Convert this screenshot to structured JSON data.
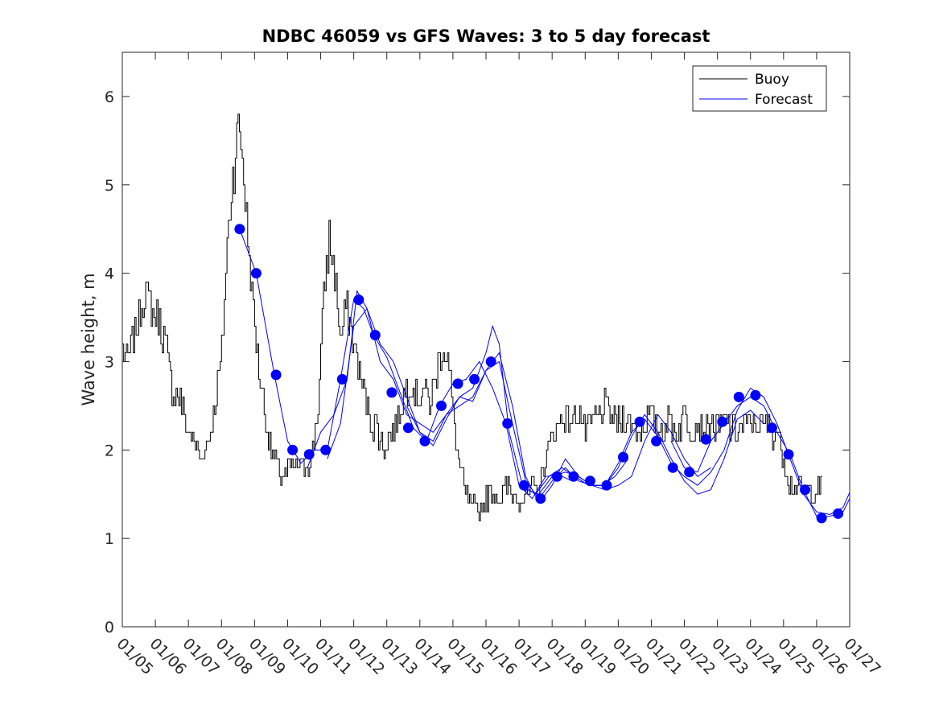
{
  "chart_data": {
    "type": "line",
    "title": "NDBC 46059 vs GFS Waves: 3 to 5 day forecast",
    "xlabel": "",
    "ylabel": "Wave height, m",
    "xlim": [
      0,
      22
    ],
    "ylim": [
      0,
      6.5
    ],
    "yticks": [
      0,
      1,
      2,
      3,
      4,
      5,
      6
    ],
    "xtick_labels": [
      "01/05",
      "01/06",
      "01/07",
      "01/08",
      "01/09",
      "01/10",
      "01/11",
      "01/12",
      "01/13",
      "01/14",
      "01/15",
      "01/16",
      "01/17",
      "01/18",
      "01/19",
      "01/20",
      "01/21",
      "01/22",
      "01/23",
      "01/24",
      "01/25",
      "01/26",
      "01/27"
    ],
    "grid": false,
    "legend": {
      "location": "top-right",
      "entries": [
        "Buoy",
        "Forecast"
      ]
    },
    "colors": {
      "buoy": "#000000",
      "forecast": "#0000ff"
    },
    "buoy_anchors": {
      "x": [
        0,
        0.1,
        0.3,
        0.55,
        0.7,
        0.95,
        1.1,
        1.3,
        1.5,
        1.75,
        1.9,
        2.15,
        2.35,
        2.6,
        2.8,
        3.0,
        3.15,
        3.3,
        3.45,
        3.55,
        3.65,
        3.75,
        3.85,
        3.95,
        4.1,
        4.3,
        4.5,
        4.7,
        4.9,
        5.1,
        5.4,
        5.7,
        5.9,
        6.1,
        6.25,
        6.45,
        6.6,
        6.75,
        6.95,
        7.1,
        7.25,
        7.4,
        7.55,
        7.7,
        7.9,
        8.1,
        8.3,
        8.5,
        8.7,
        8.9,
        9.1,
        9.3,
        9.5,
        9.7,
        9.85,
        10.0,
        10.15,
        10.35,
        10.55,
        10.75,
        10.95,
        11.1,
        11.25,
        11.45,
        11.6,
        11.8,
        12.0,
        12.2,
        12.4,
        12.6,
        12.8,
        13.0,
        13.2,
        13.4,
        13.6,
        13.8,
        14.0,
        14.2,
        14.4,
        14.6,
        14.8,
        15.0,
        15.2,
        15.4,
        15.6,
        15.8,
        16.0,
        16.2,
        16.4,
        16.6,
        16.8,
        17.0,
        17.2,
        17.4,
        17.6,
        17.8,
        18.0,
        18.2,
        18.4,
        18.6,
        18.8,
        19.0,
        19.2,
        19.4,
        19.6,
        19.8,
        20.0,
        20.2,
        20.4,
        20.6,
        20.8,
        21.0,
        21.2
      ],
      "y": [
        3.2,
        3.0,
        3.2,
        3.6,
        3.8,
        3.5,
        3.5,
        3.2,
        2.7,
        2.6,
        2.3,
        2.1,
        1.9,
        2.1,
        2.5,
        3.1,
        4.2,
        5.0,
        5.5,
        5.7,
        5.2,
        4.6,
        4.1,
        3.6,
        3.0,
        2.4,
        2.0,
        1.75,
        1.7,
        1.8,
        1.8,
        1.9,
        2.4,
        3.8,
        4.4,
        3.9,
        3.2,
        3.6,
        3.3,
        3.0,
        2.7,
        2.5,
        2.3,
        2.25,
        2.0,
        2.2,
        2.3,
        2.6,
        2.8,
        2.6,
        2.7,
        2.5,
        2.9,
        3.2,
        3.0,
        2.4,
        1.9,
        1.5,
        1.35,
        1.3,
        1.4,
        1.5,
        1.5,
        1.45,
        1.6,
        1.5,
        1.45,
        1.5,
        1.55,
        1.6,
        1.9,
        2.2,
        2.3,
        2.4,
        2.3,
        2.5,
        2.2,
        2.3,
        2.4,
        2.5,
        2.35,
        2.3,
        2.4,
        2.3,
        2.2,
        2.3,
        2.4,
        2.2,
        2.3,
        2.3,
        2.2,
        2.4,
        2.2,
        2.3,
        2.2,
        2.3,
        2.2,
        2.35,
        2.25,
        2.2,
        2.3,
        2.3,
        2.3,
        2.3,
        2.2,
        2.2,
        1.9,
        1.6,
        1.6,
        1.55,
        1.5,
        1.6,
        1.6
      ]
    },
    "forecast_points": {
      "x": [
        3.55,
        4.05,
        4.65,
        5.15,
        5.65,
        6.15,
        6.65,
        7.15,
        7.65,
        8.15,
        8.65,
        9.15,
        9.65,
        10.15,
        10.65,
        11.15,
        11.65,
        12.15,
        12.65,
        13.15,
        13.65,
        14.15,
        14.65,
        15.15,
        15.65,
        16.15,
        16.65,
        17.15,
        17.65,
        18.15,
        18.65,
        19.15,
        19.65,
        20.15,
        20.65,
        21.15,
        21.65
      ],
      "y": [
        4.5,
        4.0,
        2.85,
        2.0,
        1.95,
        2.0,
        2.8,
        3.7,
        3.3,
        2.65,
        2.25,
        2.1,
        2.5,
        2.75,
        2.8,
        3.0,
        2.3,
        1.6,
        1.45,
        1.7,
        1.7,
        1.65,
        1.6,
        1.92,
        2.32,
        2.1,
        1.8,
        1.75,
        2.12,
        2.32,
        2.6,
        2.62,
        2.25,
        1.95,
        1.55,
        1.23,
        1.28
      ]
    },
    "forecast_lines": [
      {
        "x": [
          3.55,
          4.05,
          4.6,
          5.0,
          5.4,
          5.8,
          6.2,
          6.6,
          7.0,
          7.3,
          7.6,
          8.0,
          8.4,
          8.8,
          9.2,
          9.6,
          10.0,
          10.4,
          10.8,
          11.2,
          11.6,
          12.0,
          12.4,
          12.8,
          13.2,
          13.6
        ],
        "y": [
          4.5,
          4.0,
          2.85,
          2.1,
          1.85,
          2.0,
          2.0,
          2.8,
          3.7,
          3.6,
          3.3,
          3.05,
          2.65,
          2.25,
          2.1,
          2.5,
          2.75,
          2.8,
          3.0,
          2.7,
          2.3,
          1.6,
          1.45,
          1.7,
          1.72,
          1.65
        ]
      },
      {
        "x": [
          5.6,
          6.0,
          6.4,
          6.8,
          7.1,
          7.4,
          7.8,
          8.2,
          8.6,
          9.0,
          9.4,
          9.8,
          10.2,
          10.6,
          11.0,
          11.2,
          11.4,
          11.7,
          12.1,
          12.5,
          12.9,
          13.3,
          13.7,
          14.1,
          14.5,
          14.9,
          15.3
        ],
        "y": [
          1.8,
          2.2,
          2.4,
          2.8,
          3.8,
          3.6,
          3.2,
          3.0,
          2.6,
          2.2,
          2.1,
          2.4,
          2.6,
          2.7,
          3.1,
          3.4,
          3.2,
          2.2,
          1.6,
          1.5,
          1.7,
          1.8,
          1.7,
          1.6,
          1.6,
          1.7,
          1.9
        ]
      },
      {
        "x": [
          6.2,
          6.6,
          7.0,
          7.4,
          7.8,
          8.2,
          8.6,
          9.0,
          9.4,
          9.8,
          10.2,
          10.6,
          11.0,
          11.4,
          11.8,
          12.2,
          12.6,
          13.0,
          13.4,
          13.8,
          14.2,
          14.6,
          15.0,
          15.4,
          15.8,
          16.2,
          16.6,
          17.0,
          17.4,
          17.8
        ],
        "y": [
          1.9,
          2.3,
          3.4,
          3.6,
          3.0,
          2.8,
          2.4,
          2.3,
          2.2,
          2.4,
          2.5,
          2.6,
          2.9,
          3.1,
          2.5,
          1.7,
          1.4,
          1.6,
          1.9,
          1.7,
          1.6,
          1.55,
          1.6,
          1.7,
          2.1,
          2.4,
          2.2,
          1.9,
          1.7,
          1.8
        ]
      },
      {
        "x": [
          8.6,
          9.0,
          9.4,
          9.8,
          10.2,
          10.6,
          11.0,
          11.4,
          11.8,
          12.2,
          12.6,
          13.0,
          13.4,
          13.8,
          14.2,
          14.6,
          15.0,
          15.4,
          15.8,
          16.2,
          16.6,
          17.0,
          17.4,
          17.8,
          18.2,
          18.6,
          19.0,
          19.4
        ],
        "y": [
          2.5,
          2.2,
          2.05,
          2.35,
          2.6,
          2.55,
          2.9,
          3.0,
          2.3,
          1.65,
          1.45,
          1.65,
          1.8,
          1.65,
          1.6,
          1.6,
          1.8,
          2.15,
          2.4,
          2.2,
          1.9,
          1.65,
          1.5,
          1.55,
          1.9,
          2.35,
          2.45,
          2.3
        ]
      },
      {
        "x": [
          12.2,
          12.6,
          13.0,
          13.4,
          13.8,
          14.2,
          14.6,
          15.0,
          15.4,
          15.8,
          16.2,
          16.6,
          17.0,
          17.4,
          17.8,
          18.2,
          18.6,
          19.0,
          19.4,
          19.8,
          20.2,
          20.6,
          21.0,
          21.4,
          21.8,
          22.0
        ],
        "y": [
          1.55,
          1.5,
          1.7,
          1.75,
          1.7,
          1.6,
          1.6,
          1.85,
          2.2,
          2.35,
          2.15,
          1.85,
          1.7,
          1.6,
          1.75,
          2.0,
          2.45,
          2.7,
          2.6,
          2.3,
          1.9,
          1.5,
          1.3,
          1.27,
          1.35,
          1.52
        ]
      },
      {
        "x": [
          16.6,
          17.0,
          17.4,
          17.8,
          18.2,
          18.6,
          19.0,
          19.4,
          19.8,
          20.2,
          20.6,
          21.0,
          21.4,
          21.8,
          22.0
        ],
        "y": [
          2.1,
          1.8,
          1.75,
          2.1,
          2.3,
          2.5,
          2.6,
          2.5,
          2.2,
          1.95,
          1.55,
          1.25,
          1.25,
          1.3,
          1.45
        ]
      }
    ]
  }
}
